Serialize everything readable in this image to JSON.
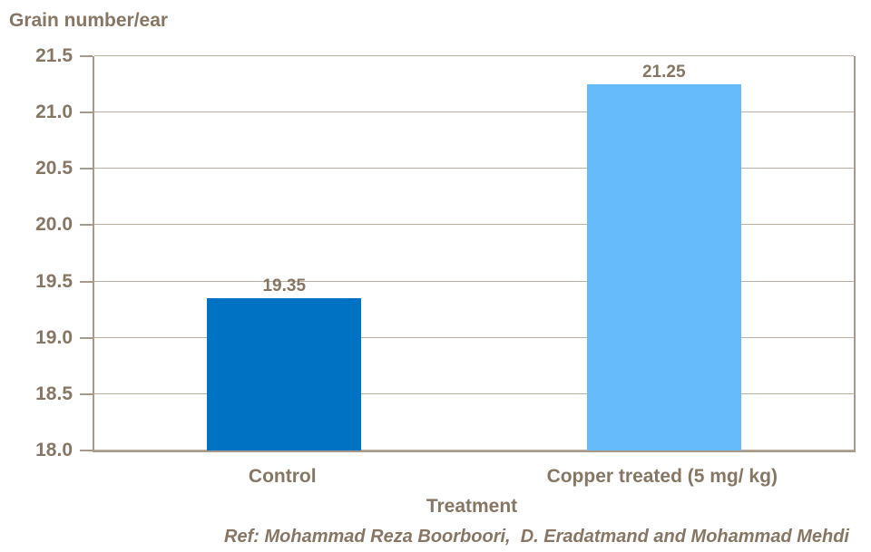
{
  "title": "Grain number/ear",
  "footer": "Ref: Mohammad Reza Boorboori,  D. Eradatmand and Mohammad Mehdi",
  "colors": {
    "background": "#ffffff",
    "text": "#877663",
    "gridline": "#bcb0a3",
    "axis": "#a89a8b",
    "bar_control": "#0072C3",
    "bar_copper": "#66BBFA"
  },
  "chart_data": {
    "type": "bar",
    "title": "Grain number/ear",
    "xlabel": "Treatment",
    "ylabel": "Grain number/ear",
    "categories": [
      "Control",
      "Copper treated (5 mg/ kg)"
    ],
    "values": [
      19.35,
      21.25
    ],
    "data_labels": [
      "19.35",
      "21.25"
    ],
    "bar_colors": [
      "#0072C3",
      "#66BBFA"
    ],
    "ylim": [
      18.0,
      21.5
    ],
    "ytick_step": 0.5,
    "yticks": [
      "21.5",
      "21.0",
      "20.5",
      "20.0",
      "19.5",
      "19.0",
      "18.5",
      "18.0"
    ],
    "grid": true,
    "legend": false
  }
}
